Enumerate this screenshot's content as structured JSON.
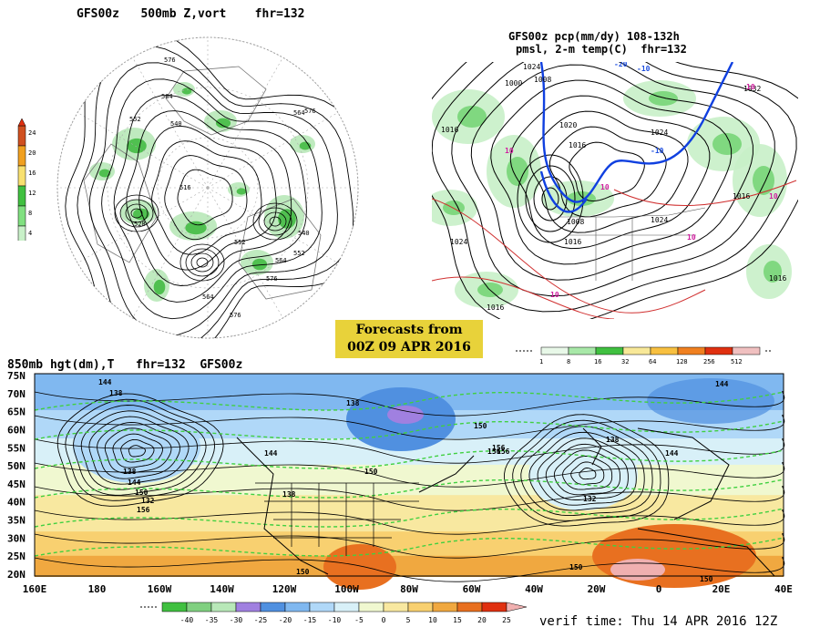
{
  "panel_top_left": {
    "title": "GFS00z   500mb Z,vort    fhr=132",
    "contour_labels": [
      "576",
      "564",
      "552",
      "540",
      "528",
      "516",
      "552",
      "564",
      "576",
      "540",
      "552",
      "564",
      "576",
      "564",
      "576"
    ],
    "colorbar": {
      "ticks": [
        "24",
        "20",
        "16",
        "12",
        "8",
        "4"
      ],
      "colors": [
        "#d05020",
        "#f0a020",
        "#f8e070",
        "#40c040",
        "#80e080",
        "#c8f0c8"
      ]
    }
  },
  "panel_top_right": {
    "title_line1": "GFS00z pcp(mm/dy) 108-132h",
    "title_line2": "pmsl, 2-m temp(C)  fhr=132",
    "isobar_labels": [
      "1024",
      "1008",
      "1000",
      "1016",
      "1020",
      "1024",
      "1016",
      "1032",
      "1016",
      "1024",
      "1016",
      "1008",
      "1024",
      "1016",
      "1016"
    ],
    "temp_labels": [
      "10",
      "-10",
      "-20",
      "-10",
      "10",
      "10",
      "10",
      "10",
      "10"
    ],
    "colorbar": {
      "ticks": [
        "1",
        "8",
        "16",
        "32",
        "64",
        "128",
        "256",
        "512"
      ],
      "colors": [
        "#e8f8e8",
        "#a8e8a8",
        "#40c040",
        "#f8e898",
        "#f8c040",
        "#f08020",
        "#e03010",
        "#f0c0c0"
      ]
    }
  },
  "banner": {
    "line1": "Forecasts from",
    "line2": "00Z 09 APR 2016"
  },
  "panel_bottom": {
    "title": "850mb hgt(dm),T   fhr=132  GFS00z",
    "lat_labels": [
      "75N",
      "70N",
      "65N",
      "60N",
      "55N",
      "50N",
      "45N",
      "40N",
      "35N",
      "30N",
      "25N",
      "20N"
    ],
    "lon_labels": [
      "160E",
      "180",
      "160W",
      "140W",
      "120W",
      "100W",
      "80W",
      "60W",
      "40W",
      "20W",
      "0",
      "20E",
      "40E"
    ],
    "height_labels": [
      "144",
      "138",
      "138",
      "144",
      "150",
      "156",
      "144",
      "150",
      "138",
      "156",
      "138",
      "144",
      "150",
      "132",
      "156",
      "150",
      "150",
      "156",
      "138",
      "144",
      "132",
      "150"
    ],
    "colorbar": {
      "ticks": [
        "-40",
        "-35",
        "-30",
        "-25",
        "-20",
        "-15",
        "-10",
        "-5",
        "0",
        "5",
        "10",
        "15",
        "20",
        "25"
      ],
      "colors": [
        "#40c040",
        "#80d080",
        "#b8e8b8",
        "#a080e0",
        "#5090e0",
        "#80b8f0",
        "#b0d8f8",
        "#d8f0f8",
        "#f0f8d0",
        "#f8e8a0",
        "#f8d070",
        "#f0a840",
        "#e87020",
        "#e03010",
        "#f0b0b0"
      ]
    }
  },
  "verif_time": "verif time: Thu 14 APR 2016 12Z"
}
